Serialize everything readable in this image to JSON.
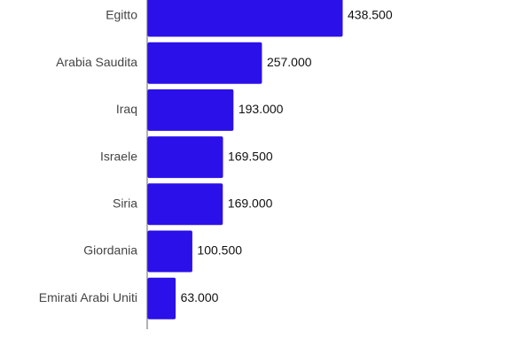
{
  "chart_data": {
    "type": "hbar",
    "categories": [
      "Egitto",
      "Arabia Saudita",
      "Iraq",
      "Israele",
      "Siria",
      "Giordania",
      "Emirati Arabi Uniti"
    ],
    "values": [
      438500,
      257000,
      193000,
      169500,
      169000,
      100500,
      63000
    ],
    "value_labels": [
      "438.500",
      "257.000",
      "193.000",
      "169.500",
      "169.000",
      "100.500",
      "63.000"
    ],
    "color": "#2c10e9"
  }
}
